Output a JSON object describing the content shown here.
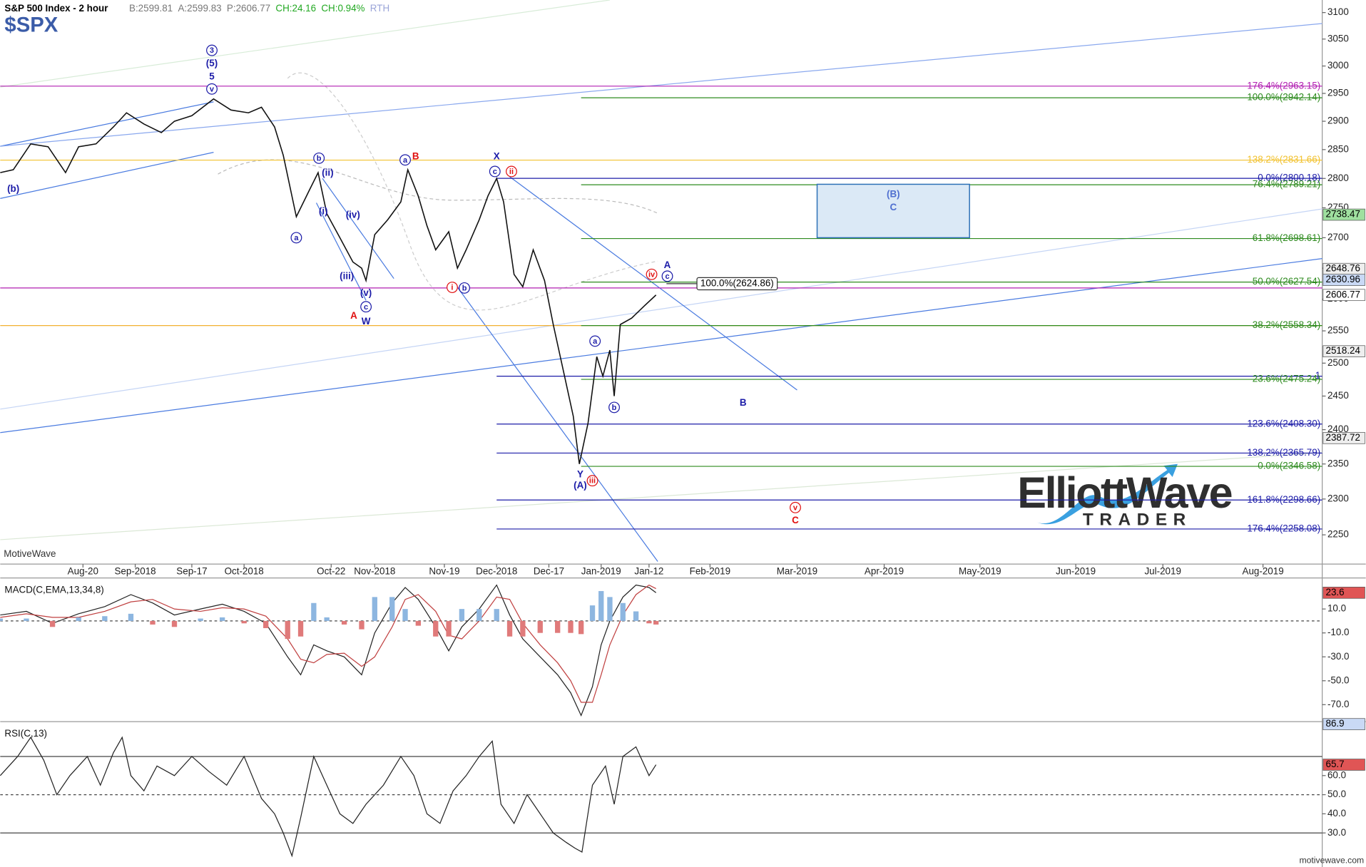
{
  "chart_data": [
    {
      "type": "price",
      "title": "S&P 500 Index - 2 hour",
      "symbol": "$SPX",
      "quote": [
        {
          "text": "B:2599.81",
          "color": "#777"
        },
        {
          "text": "A:2599.83",
          "color": "#777"
        },
        {
          "text": "P:2606.77",
          "color": "#777"
        },
        {
          "text": "CH:24.16",
          "color": "#22a822"
        },
        {
          "text": "CH:0.94%",
          "color": "#22a822"
        },
        {
          "text": "RTH",
          "color": "#9aa4d8"
        }
      ],
      "log": true,
      "xlim": [
        0,
        304
      ],
      "ylim": [
        2210,
        3124
      ],
      "xticks": [
        {
          "value": 19,
          "label": "Aug-20"
        },
        {
          "value": 31,
          "label": "Sep-2018"
        },
        {
          "value": 44,
          "label": "Sep-17"
        },
        {
          "value": 56,
          "label": "Oct-2018"
        },
        {
          "value": 76,
          "label": "Oct-22"
        },
        {
          "value": 86,
          "label": "Nov-2018"
        },
        {
          "value": 102,
          "label": "Nov-19"
        },
        {
          "value": 114,
          "label": "Dec-2018"
        },
        {
          "value": 126,
          "label": "Dec-17"
        },
        {
          "value": 138,
          "label": "Jan-2019"
        },
        {
          "value": 149,
          "label": "Jan-12"
        },
        {
          "value": 163,
          "label": "Feb-2019"
        },
        {
          "value": 183,
          "label": "Mar-2019"
        },
        {
          "value": 203,
          "label": "Apr-2019"
        },
        {
          "value": 225,
          "label": "May-2019"
        },
        {
          "value": 247,
          "label": "Jun-2019"
        },
        {
          "value": 267,
          "label": "Jul-2019"
        },
        {
          "value": 290,
          "label": "Aug-2019"
        }
      ],
      "yticks": [
        2250,
        2300,
        2350,
        2400,
        2450,
        2500,
        2550,
        2600,
        2650,
        2700,
        2750,
        2800,
        2850,
        2900,
        2950,
        3000,
        3050,
        3100
      ],
      "series": [
        {
          "name": "SPX",
          "color": "#111111",
          "x": [
            0,
            3,
            7,
            11,
            15,
            18,
            22,
            26,
            29,
            33,
            37,
            40,
            44,
            49,
            53,
            57,
            60,
            63,
            65,
            68,
            71,
            73,
            75,
            78,
            81,
            83,
            84,
            86,
            89,
            92,
            93.6,
            96,
            98,
            100,
            103,
            105,
            107,
            110,
            112,
            114,
            115.6,
            118,
            120,
            122.4,
            125,
            127,
            129.6,
            131.6,
            133,
            135,
            137,
            138.4,
            140,
            141,
            142.4,
            145,
            148,
            150.6
          ],
          "values": [
            2810,
            2815,
            2860,
            2855,
            2810,
            2855,
            2860,
            2890,
            2915,
            2895,
            2880,
            2900,
            2910,
            2940,
            2920,
            2915,
            2925,
            2890,
            2840,
            2735,
            2780,
            2810,
            2740,
            2700,
            2660,
            2650,
            2630,
            2705,
            2730,
            2760,
            2815,
            2770,
            2720,
            2680,
            2710,
            2650,
            2680,
            2730,
            2770,
            2800,
            2760,
            2640,
            2620,
            2680,
            2630,
            2560,
            2480,
            2420,
            2350,
            2410,
            2510,
            2480,
            2520,
            2450,
            2560,
            2570,
            2590,
            2606.77
          ]
        }
      ],
      "levels": [
        {
          "value": 2963.15,
          "label": "176.4%(2963.15)",
          "color": "#b21fb2",
          "from": 0
        },
        {
          "value": 2942.14,
          "label": "100.0%(2942.14)",
          "color": "#2e8b1f",
          "from": 133.4
        },
        {
          "value": 2831.66,
          "label": "138.2%(2831.66)",
          "color": "#f2c230",
          "from": 0
        },
        {
          "value": 2800.18,
          "label": "0.0%(2800.18)",
          "color": "#1c1ca8",
          "from": 114
        },
        {
          "value": 2789.21,
          "label": "76.4%(2789.21)",
          "color": "#2e8b1f",
          "from": 133.4
        },
        {
          "value": 2698.61,
          "label": "61.8%(2698.61)",
          "color": "#2e8b1f",
          "from": 133.4
        },
        {
          "value": 2627.54,
          "label": "50.0%(2627.54)",
          "color": "#2e8b1f",
          "from": 133.4
        },
        {
          "value": 2618,
          "color": "#b21fb2",
          "from": 0
        },
        {
          "value": 2558.34,
          "color": "#f2b030",
          "from": 0
        },
        {
          "value": 2558.34,
          "label": "38.2%(2558.34)",
          "color": "#2e8b1f",
          "from": 133.4
        },
        {
          "value": 2480,
          "label": "1",
          "color": "#1c1ca8",
          "from": 114
        },
        {
          "value": 2475.24,
          "label": "23.6%(2475.24)",
          "color": "#2e8b1f",
          "from": 133.4
        },
        {
          "value": 2408.3,
          "label": "123.6%(2408.30)",
          "color": "#1c1ca8",
          "from": 114
        },
        {
          "value": 2365.79,
          "label": "138.2%(2365.79)",
          "color": "#1c1ca8",
          "from": 114
        },
        {
          "value": 2346.58,
          "label": "0.0%(2346.58)",
          "color": "#2e8b1f",
          "from": 133.4
        },
        {
          "value": 2298.66,
          "label": "161.8%(2298.66)",
          "color": "#1c1ca8",
          "from": 114
        },
        {
          "value": 2258.08,
          "label": "176.4%(2258.08)",
          "color": "#1c1ca8",
          "from": 114
        }
      ],
      "measure": {
        "value": 2624.86,
        "label": "100.0%(2624.86)",
        "x": 160
      },
      "markers": [
        {
          "value": 2738.47,
          "color": "#9fe09f"
        },
        {
          "value": 2648.76,
          "color": "#eeeeee"
        },
        {
          "value": 2630.96,
          "color": "#c9d9f5"
        },
        {
          "value": 2606.77,
          "color": "#ffffff"
        },
        {
          "value": 2518.24,
          "color": "#eeeeee"
        },
        {
          "value": 2387.72,
          "color": "#eeeeee"
        }
      ],
      "target_box": {
        "x": [
          187.6,
          222.6
        ],
        "y": [
          2700,
          2790
        ],
        "labels": [
          "(B)",
          "C"
        ]
      },
      "annotations": [
        {
          "text": "3",
          "x": 48.6,
          "y": 3029,
          "color": "#1c1ca8",
          "circled": true
        },
        {
          "text": "(5)",
          "x": 48.6,
          "y": 3005,
          "color": "#1c1ca8"
        },
        {
          "text": "5",
          "x": 48.6,
          "y": 2981,
          "color": "#1c1ca8"
        },
        {
          "text": "v",
          "x": 48.6,
          "y": 2958,
          "color": "#1c1ca8",
          "circled": true
        },
        {
          "text": "(b)",
          "x": 3,
          "y": 2782,
          "color": "#1c1ca8"
        },
        {
          "text": "b",
          "x": 73.2,
          "y": 2835,
          "color": "#1c1ca8",
          "circled": true
        },
        {
          "text": "(ii)",
          "x": 75.2,
          "y": 2810,
          "color": "#1c1ca8"
        },
        {
          "text": "(i)",
          "x": 74.2,
          "y": 2744,
          "color": "#1c1ca8"
        },
        {
          "text": "(iv)",
          "x": 81,
          "y": 2738,
          "color": "#1c1ca8"
        },
        {
          "text": "(iii)",
          "x": 79.6,
          "y": 2637,
          "color": "#1c1ca8"
        },
        {
          "text": "(v)",
          "x": 84,
          "y": 2610,
          "color": "#1c1ca8"
        },
        {
          "text": "c",
          "x": 84,
          "y": 2588,
          "color": "#1c1ca8",
          "circled": true
        },
        {
          "text": "W",
          "x": 84,
          "y": 2565,
          "color": "#1c1ca8"
        },
        {
          "text": "A",
          "x": 81.2,
          "y": 2574,
          "color": "#e01010"
        },
        {
          "text": "a",
          "x": 68,
          "y": 2700,
          "color": "#1c1ca8",
          "circled": true
        },
        {
          "text": "a",
          "x": 93,
          "y": 2832,
          "color": "#1c1ca8",
          "circled": true
        },
        {
          "text": "B",
          "x": 95.4,
          "y": 2838,
          "color": "#e01010"
        },
        {
          "text": "X",
          "x": 114,
          "y": 2838,
          "color": "#1c1ca8"
        },
        {
          "text": "c",
          "x": 113.6,
          "y": 2812,
          "color": "#1c1ca8",
          "circled": true
        },
        {
          "text": "ii",
          "x": 117.4,
          "y": 2812,
          "color": "#e01010",
          "circled": true
        },
        {
          "text": "i",
          "x": 103.8,
          "y": 2619,
          "color": "#e01010",
          "circled": true
        },
        {
          "text": "b",
          "x": 106.6,
          "y": 2618,
          "color": "#1c1ca8",
          "circled": true
        },
        {
          "text": "Y",
          "x": 133.2,
          "y": 2335,
          "color": "#1c1ca8"
        },
        {
          "text": "iii",
          "x": 136,
          "y": 2326,
          "color": "#e01010",
          "circled": true
        },
        {
          "text": "(A)",
          "x": 133.2,
          "y": 2319,
          "color": "#1c1ca8"
        },
        {
          "text": "a",
          "x": 136.6,
          "y": 2534,
          "color": "#1c1ca8",
          "circled": true
        },
        {
          "text": "b",
          "x": 141,
          "y": 2433,
          "color": "#1c1ca8",
          "circled": true
        },
        {
          "text": "iv",
          "x": 149.6,
          "y": 2640,
          "color": "#e01010",
          "circled": true
        },
        {
          "text": "A",
          "x": 153.2,
          "y": 2655,
          "color": "#1c1ca8"
        },
        {
          "text": "c",
          "x": 153.2,
          "y": 2637,
          "color": "#1c1ca8",
          "circled": true
        },
        {
          "text": "B",
          "x": 170.6,
          "y": 2440,
          "color": "#1c1ca8"
        },
        {
          "text": "v",
          "x": 182.6,
          "y": 2288,
          "color": "#e01010",
          "circled": true
        },
        {
          "text": "C",
          "x": 182.6,
          "y": 2270,
          "color": "#e01010"
        }
      ]
    },
    {
      "type": "macd",
      "title": "MACD(C,EMA,13,34,8)",
      "xlim": [
        0,
        304
      ],
      "ylim": [
        -82,
        33
      ],
      "yticks": [
        {
          "value": 10,
          "label": "10.0"
        },
        {
          "value": -10,
          "label": "-10.0"
        },
        {
          "value": -30,
          "label": "-30.0"
        },
        {
          "value": -50,
          "label": "-50.0"
        },
        {
          "value": -70,
          "label": "-70.0"
        }
      ],
      "levels": [
        {
          "value": 0,
          "dashed": true
        }
      ],
      "markers": [
        {
          "value": 23.6,
          "color": "#e05555"
        }
      ],
      "x": [
        0,
        6,
        12,
        18,
        24,
        30,
        35,
        40,
        46,
        51,
        56,
        61,
        66,
        69,
        72,
        75,
        79,
        83,
        86,
        90,
        93,
        96,
        100,
        103,
        106,
        110,
        114,
        117,
        120,
        124,
        128,
        131,
        133.4,
        136,
        138,
        140,
        143,
        146,
        149,
        150.6
      ],
      "series": [
        {
          "name": "MACD",
          "color": "#222222",
          "values": [
            5,
            8,
            -2,
            6,
            12,
            22,
            15,
            5,
            10,
            14,
            8,
            -2,
            -30,
            -45,
            -20,
            -25,
            -30,
            -45,
            -10,
            15,
            28,
            18,
            -5,
            -25,
            -5,
            10,
            30,
            5,
            -15,
            -30,
            -45,
            -60,
            -79,
            -55,
            -20,
            0,
            20,
            30,
            28,
            23.6
          ]
        },
        {
          "name": "Signal",
          "color": "#c04040",
          "values": [
            3,
            6,
            3,
            3,
            8,
            16,
            18,
            10,
            8,
            11,
            10,
            4,
            -15,
            -32,
            -35,
            -28,
            -27,
            -38,
            -30,
            -5,
            18,
            22,
            8,
            -12,
            -15,
            0,
            20,
            18,
            -2,
            -20,
            -35,
            -50,
            -68,
            -68,
            -45,
            -20,
            5,
            22,
            30,
            27
          ]
        },
        {
          "name": "Histogram",
          "style": "histogram",
          "color_up": "#8db6e0",
          "color_down": "#e07a7a",
          "values": [
            2,
            2,
            -5,
            3,
            4,
            6,
            -3,
            -5,
            2,
            3,
            -2,
            -6,
            -15,
            -13,
            15,
            3,
            -3,
            -7,
            20,
            20,
            10,
            -4,
            -13,
            -13,
            10,
            10,
            10,
            -13,
            -13,
            -10,
            -10,
            -10,
            -11,
            13,
            25,
            20,
            15,
            8,
            -2,
            -3
          ]
        }
      ]
    },
    {
      "type": "rsi",
      "title": "RSI(C,13)",
      "xlim": [
        0,
        304
      ],
      "ylim": [
        14,
        86.4
      ],
      "yticks": [
        {
          "value": 60,
          "label": "60.0"
        },
        {
          "value": 50,
          "label": "50.0"
        },
        {
          "value": 40,
          "label": "40.0"
        },
        {
          "value": 30,
          "label": "30.0"
        }
      ],
      "levels": [
        {
          "value": 70,
          "dashed": false
        },
        {
          "value": 50,
          "dashed": true
        },
        {
          "value": 30,
          "dashed": false
        }
      ],
      "markers": [
        {
          "value": 86.9,
          "color": "#c9d9f5"
        },
        {
          "value": 65.7,
          "color": "#e05555"
        }
      ],
      "x": [
        0,
        4,
        7,
        10,
        13,
        16,
        20,
        23,
        26,
        28,
        30,
        33,
        36,
        40,
        44,
        48,
        52,
        56,
        60,
        63,
        65,
        67,
        69,
        72,
        75,
        78,
        81,
        84,
        88,
        92,
        95,
        98,
        101,
        104,
        107,
        110,
        113,
        115,
        118,
        121,
        124,
        127,
        130,
        132,
        133.6,
        136,
        139,
        141,
        143,
        146,
        149,
        150.6
      ],
      "series": [
        {
          "name": "RSI",
          "color": "#222222",
          "values": [
            60,
            70,
            80,
            68,
            50,
            60,
            70,
            55,
            72,
            80,
            60,
            52,
            65,
            60,
            70,
            62,
            55,
            70,
            48,
            40,
            30,
            18,
            38,
            70,
            55,
            40,
            35,
            45,
            55,
            70,
            60,
            40,
            35,
            52,
            60,
            70,
            78,
            45,
            35,
            50,
            40,
            30,
            25,
            22,
            20,
            55,
            65,
            45,
            70,
            75,
            60,
            65.7
          ]
        }
      ]
    }
  ],
  "watermark": "MotiveWave",
  "footer": "motivewave.com",
  "logo": {
    "name": "ElliottWave",
    "sub": "TRADER"
  }
}
